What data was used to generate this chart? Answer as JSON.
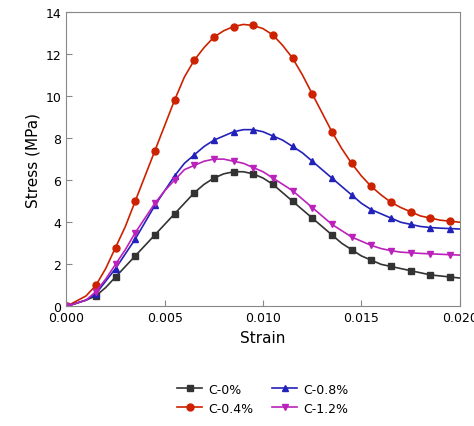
{
  "title": "",
  "xlabel": "Strain",
  "ylabel": "Stress (MPa)",
  "xlim": [
    0.0,
    0.02
  ],
  "ylim": [
    0,
    14
  ],
  "yticks": [
    0,
    2,
    4,
    6,
    8,
    10,
    12,
    14
  ],
  "xticks": [
    0.0,
    0.005,
    0.01,
    0.015,
    0.02
  ],
  "series": [
    {
      "label": "C-0%",
      "color": "#333333",
      "marker": "s",
      "markersize": 5,
      "strain": [
        0.0,
        0.001,
        0.0015,
        0.002,
        0.0025,
        0.003,
        0.0035,
        0.004,
        0.0045,
        0.005,
        0.0055,
        0.006,
        0.0065,
        0.007,
        0.0075,
        0.008,
        0.0085,
        0.009,
        0.0095,
        0.01,
        0.0105,
        0.011,
        0.0115,
        0.012,
        0.0125,
        0.013,
        0.0135,
        0.014,
        0.0145,
        0.015,
        0.0155,
        0.016,
        0.0165,
        0.017,
        0.0175,
        0.018,
        0.0185,
        0.019,
        0.0195,
        0.02
      ],
      "stress": [
        0.0,
        0.3,
        0.5,
        0.9,
        1.4,
        1.9,
        2.4,
        2.9,
        3.4,
        3.9,
        4.4,
        4.9,
        5.4,
        5.8,
        6.1,
        6.3,
        6.4,
        6.4,
        6.3,
        6.1,
        5.8,
        5.4,
        5.0,
        4.6,
        4.2,
        3.8,
        3.4,
        3.0,
        2.7,
        2.4,
        2.2,
        2.0,
        1.9,
        1.8,
        1.7,
        1.6,
        1.5,
        1.45,
        1.4,
        1.35
      ]
    },
    {
      "label": "C-0.4%",
      "color": "#cc2200",
      "marker": "o",
      "markersize": 5,
      "strain": [
        0.0,
        0.001,
        0.0015,
        0.002,
        0.0025,
        0.003,
        0.0035,
        0.004,
        0.0045,
        0.005,
        0.0055,
        0.006,
        0.0065,
        0.007,
        0.0075,
        0.008,
        0.0085,
        0.009,
        0.0095,
        0.01,
        0.0105,
        0.011,
        0.0115,
        0.012,
        0.0125,
        0.013,
        0.0135,
        0.014,
        0.0145,
        0.015,
        0.0155,
        0.016,
        0.0165,
        0.017,
        0.0175,
        0.018,
        0.0185,
        0.019,
        0.0195,
        0.02
      ],
      "stress": [
        0.0,
        0.5,
        1.0,
        1.8,
        2.8,
        3.8,
        5.0,
        6.2,
        7.4,
        8.6,
        9.8,
        10.9,
        11.7,
        12.3,
        12.8,
        13.1,
        13.3,
        13.4,
        13.35,
        13.2,
        12.9,
        12.4,
        11.8,
        11.0,
        10.1,
        9.2,
        8.3,
        7.5,
        6.8,
        6.2,
        5.7,
        5.3,
        4.95,
        4.7,
        4.5,
        4.3,
        4.2,
        4.1,
        4.05,
        4.0
      ]
    },
    {
      "label": "C-0.8%",
      "color": "#2222bb",
      "marker": "^",
      "markersize": 5,
      "strain": [
        0.0,
        0.001,
        0.0015,
        0.002,
        0.0025,
        0.003,
        0.0035,
        0.004,
        0.0045,
        0.005,
        0.0055,
        0.006,
        0.0065,
        0.007,
        0.0075,
        0.008,
        0.0085,
        0.009,
        0.0095,
        0.01,
        0.0105,
        0.011,
        0.0115,
        0.012,
        0.0125,
        0.013,
        0.0135,
        0.014,
        0.0145,
        0.015,
        0.0155,
        0.016,
        0.0165,
        0.017,
        0.0175,
        0.018,
        0.0185,
        0.019,
        0.0195,
        0.02
      ],
      "stress": [
        0.0,
        0.3,
        0.6,
        1.2,
        1.8,
        2.5,
        3.2,
        4.0,
        4.8,
        5.5,
        6.2,
        6.8,
        7.2,
        7.6,
        7.9,
        8.1,
        8.3,
        8.4,
        8.4,
        8.3,
        8.1,
        7.9,
        7.6,
        7.3,
        6.9,
        6.5,
        6.1,
        5.7,
        5.3,
        4.9,
        4.6,
        4.4,
        4.2,
        4.0,
        3.9,
        3.8,
        3.75,
        3.72,
        3.7,
        3.68
      ]
    },
    {
      "label": "C-1.2%",
      "color": "#bb22bb",
      "marker": "v",
      "markersize": 5,
      "strain": [
        0.0,
        0.001,
        0.0015,
        0.002,
        0.0025,
        0.003,
        0.0035,
        0.004,
        0.0045,
        0.005,
        0.0055,
        0.006,
        0.0065,
        0.007,
        0.0075,
        0.008,
        0.0085,
        0.009,
        0.0095,
        0.01,
        0.0105,
        0.011,
        0.0115,
        0.012,
        0.0125,
        0.013,
        0.0135,
        0.014,
        0.0145,
        0.015,
        0.0155,
        0.016,
        0.0165,
        0.017,
        0.0175,
        0.018,
        0.0185,
        0.019,
        0.0195,
        0.02
      ],
      "stress": [
        0.0,
        0.3,
        0.7,
        1.3,
        2.0,
        2.7,
        3.5,
        4.2,
        4.9,
        5.5,
        6.0,
        6.5,
        6.7,
        6.9,
        7.0,
        7.0,
        6.9,
        6.8,
        6.6,
        6.4,
        6.1,
        5.8,
        5.5,
        5.1,
        4.7,
        4.3,
        3.9,
        3.6,
        3.3,
        3.1,
        2.9,
        2.75,
        2.65,
        2.58,
        2.55,
        2.52,
        2.5,
        2.48,
        2.46,
        2.44
      ]
    }
  ],
  "legend_loc": "lower center",
  "bg_color": "#ffffff",
  "axes_color": "#333333"
}
